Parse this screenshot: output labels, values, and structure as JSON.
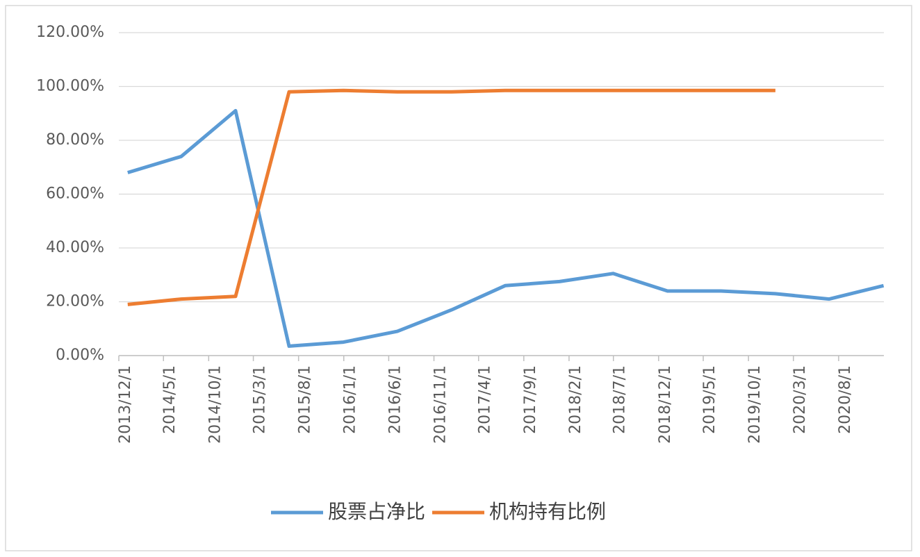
{
  "chart_data": {
    "type": "line",
    "x": [
      "2013/12/31",
      "2014/6/30",
      "2014/12/31",
      "2015/6/30",
      "2015/12/31",
      "2016/6/30",
      "2016/12/31",
      "2017/6/30",
      "2017/12/31",
      "2018/6/30",
      "2018/12/31",
      "2019/6/30",
      "2019/12/31",
      "2020/6/30",
      "2020/12/31"
    ],
    "series": [
      {
        "name": "股票占净比",
        "color": "#5b9bd5",
        "values": [
          68,
          74,
          91,
          3.5,
          5,
          9,
          17,
          26,
          27.5,
          30.5,
          24,
          24,
          23,
          21,
          26
        ]
      },
      {
        "name": "机构持有比例",
        "color": "#ed7d31",
        "values": [
          19,
          21,
          22,
          98,
          98.5,
          98,
          98,
          98.5,
          98.5,
          98.5,
          98.5,
          98.5,
          98.5,
          null,
          null
        ]
      }
    ],
    "xlim": [
      "2013/12/1",
      "2021/1/1"
    ],
    "xticks": [
      "2013/12/1",
      "2014/5/1",
      "2014/10/1",
      "2015/3/1",
      "2015/8/1",
      "2016/1/1",
      "2016/6/1",
      "2016/11/1",
      "2017/4/1",
      "2017/9/1",
      "2018/2/1",
      "2018/7/1",
      "2018/12/1",
      "2019/5/1",
      "2019/10/1",
      "2020/3/1",
      "2020/8/1"
    ],
    "ylim": [
      0,
      120
    ],
    "yticks": [
      {
        "value": 0,
        "label": "0.00%"
      },
      {
        "value": 20,
        "label": "20.00%"
      },
      {
        "value": 40,
        "label": "40.00%"
      },
      {
        "value": 60,
        "label": "60.00%"
      },
      {
        "value": 80,
        "label": "80.00%"
      },
      {
        "value": 100,
        "label": "100.00%"
      },
      {
        "value": 120,
        "label": "120.00%"
      }
    ],
    "grid": true,
    "legend": "bottom"
  }
}
